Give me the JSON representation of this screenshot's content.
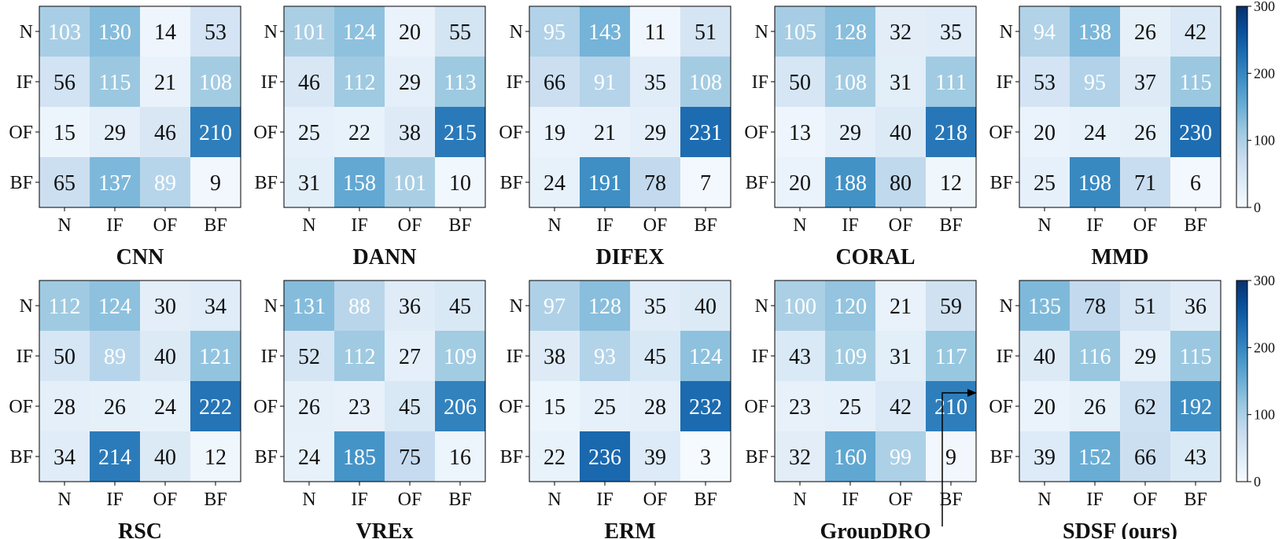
{
  "chart_data": {
    "type": "heatmap",
    "labels": [
      "N",
      "IF",
      "OF",
      "BF"
    ],
    "colorbar": {
      "min": 0,
      "max": 300,
      "ticks": [
        0,
        100,
        200,
        300
      ],
      "scheme": "Blues"
    },
    "colors": {
      "low": "#f7fbff",
      "high": "#08306b"
    },
    "panels": [
      {
        "title": "CNN",
        "matrix": [
          [
            103,
            130,
            14,
            53
          ],
          [
            56,
            115,
            21,
            108
          ],
          [
            15,
            29,
            46,
            210
          ],
          [
            65,
            137,
            89,
            9
          ]
        ]
      },
      {
        "title": "DANN",
        "matrix": [
          [
            101,
            124,
            20,
            55
          ],
          [
            46,
            112,
            29,
            113
          ],
          [
            25,
            22,
            38,
            215
          ],
          [
            31,
            158,
            101,
            10
          ]
        ]
      },
      {
        "title": "DIFEX",
        "matrix": [
          [
            95,
            143,
            11,
            51
          ],
          [
            66,
            91,
            35,
            108
          ],
          [
            19,
            21,
            29,
            231
          ],
          [
            24,
            191,
            78,
            7
          ]
        ]
      },
      {
        "title": "CORAL",
        "matrix": [
          [
            105,
            128,
            32,
            35
          ],
          [
            50,
            108,
            31,
            111
          ],
          [
            13,
            29,
            40,
            218
          ],
          [
            20,
            188,
            80,
            12
          ]
        ]
      },
      {
        "title": "MMD",
        "matrix": [
          [
            94,
            138,
            26,
            42
          ],
          [
            53,
            95,
            37,
            115
          ],
          [
            20,
            24,
            26,
            230
          ],
          [
            25,
            198,
            71,
            6
          ]
        ]
      },
      {
        "title": "RSC",
        "matrix": [
          [
            112,
            124,
            30,
            34
          ],
          [
            50,
            89,
            40,
            121
          ],
          [
            28,
            26,
            24,
            222
          ],
          [
            34,
            214,
            40,
            12
          ]
        ]
      },
      {
        "title": "VREx",
        "matrix": [
          [
            131,
            88,
            36,
            45
          ],
          [
            52,
            112,
            27,
            109
          ],
          [
            26,
            23,
            45,
            206
          ],
          [
            24,
            185,
            75,
            16
          ]
        ]
      },
      {
        "title": "ERM",
        "matrix": [
          [
            97,
            128,
            35,
            40
          ],
          [
            38,
            93,
            45,
            124
          ],
          [
            15,
            25,
            28,
            232
          ],
          [
            22,
            236,
            39,
            3
          ]
        ]
      },
      {
        "title": "GroupDRO",
        "matrix": [
          [
            100,
            120,
            21,
            59
          ],
          [
            43,
            109,
            31,
            117
          ],
          [
            23,
            25,
            42,
            210
          ],
          [
            32,
            160,
            99,
            9
          ]
        ]
      },
      {
        "title": "SDSF (ours)",
        "matrix": [
          [
            135,
            78,
            51,
            36
          ],
          [
            40,
            116,
            29,
            115
          ],
          [
            20,
            26,
            62,
            192
          ],
          [
            39,
            152,
            66,
            43
          ]
        ]
      }
    ]
  }
}
